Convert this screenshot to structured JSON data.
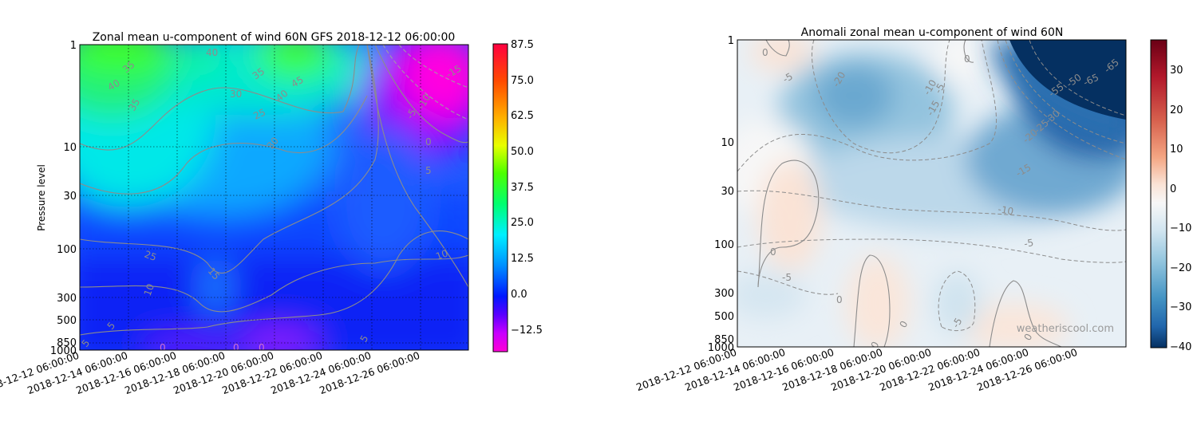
{
  "charts": [
    {
      "type": "contour",
      "title": "Zonal mean u-component of wind 60N GFS 2018-12-12 06:00:00",
      "ylabel": "Pressure level",
      "xlabel": "",
      "x_ticks": [
        "2018-12-12 06:00:00",
        "2018-12-14 06:00:00",
        "2018-12-16 06:00:00",
        "2018-12-18 06:00:00",
        "2018-12-20 06:00:00",
        "2018-12-22 06:00:00",
        "2018-12-24 06:00:00",
        "2018-12-26 06:00:00"
      ],
      "xlim": [
        "2018-12-12 06:00:00",
        "2018-12-28 06:00:00"
      ],
      "y_ticks": [
        "1",
        "10",
        "30",
        "100",
        "300",
        "500",
        "850",
        "1000"
      ],
      "y_scale": "log",
      "ylim": [
        1000,
        1
      ],
      "grid": true,
      "colormap": "gist_rainbow (magenta to red)",
      "colorbar": {
        "ticks": [
          "87.5",
          "75.0",
          "62.5",
          "50.0",
          "37.5",
          "25.0",
          "12.5",
          "0.0",
          "−12.5"
        ],
        "range": [
          -17.5,
          87.5
        ]
      },
      "contour_labels": [
        "40",
        "40",
        "35",
        "35",
        "30",
        "35",
        "45",
        "40",
        "30",
        "25",
        "30",
        "25",
        "20",
        "15",
        "15",
        "10",
        "5",
        "5",
        "0",
        "0",
        "0",
        "0",
        "0",
        "5",
        "10",
        "5",
        "0",
        "-5",
        "-10",
        "-15"
      ]
    },
    {
      "type": "contour",
      "title": "Anomali zonal mean u-component of wind 60N",
      "ylabel": "",
      "xlabel": "",
      "x_ticks": [
        "2018-12-12 06:00:00",
        "2018-12-14 06:00:00",
        "2018-12-16 06:00:00",
        "2018-12-18 06:00:00",
        "2018-12-20 06:00:00",
        "2018-12-22 06:00:00",
        "2018-12-24 06:00:00",
        "2018-12-26 06:00:00"
      ],
      "xlim": [
        "2018-12-12 06:00:00",
        "2018-12-28 06:00:00"
      ],
      "y_ticks": [
        "1",
        "10",
        "30",
        "100",
        "300",
        "500",
        "850",
        "1000"
      ],
      "y_scale": "log",
      "ylim": [
        1000,
        1
      ],
      "grid": false,
      "colormap": "RdBu_r (blue negative, red positive)",
      "colorbar": {
        "ticks": [
          "30",
          "20",
          "10",
          "0",
          "−10",
          "−20",
          "−30",
          "−40"
        ],
        "range": [
          -40,
          38
        ]
      },
      "contour_labels": [
        "0",
        "0",
        "-5",
        "-5",
        "-20",
        "-10",
        "-15",
        "-5",
        "-15",
        "-10",
        "-5",
        "0",
        "-5",
        "0",
        "0",
        "0",
        "-5",
        "0",
        "-55",
        "-50",
        "-65",
        "-65",
        "-20",
        "-25",
        "-30"
      ],
      "watermark": "weatheriscool.com"
    }
  ]
}
